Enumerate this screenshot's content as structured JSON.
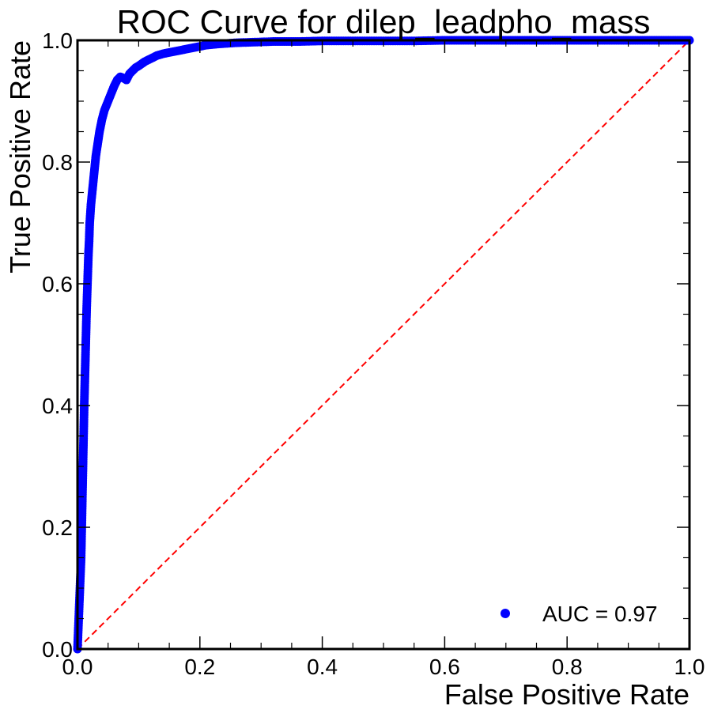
{
  "chart_data": {
    "type": "scatter",
    "title": "ROC Curve for dilep_leadpho_mass",
    "xlabel": "False Positive Rate",
    "ylabel": "True Positive Rate",
    "xlim": [
      0.0,
      1.0
    ],
    "ylim": [
      0.0,
      1.0
    ],
    "x_ticks": [
      "0.0",
      "0.2",
      "0.4",
      "0.6",
      "0.8",
      "1.0"
    ],
    "y_ticks": [
      "0.0",
      "0.2",
      "0.4",
      "0.6",
      "0.8",
      "1.0"
    ],
    "grid": false,
    "legend_position": "bottom-right",
    "series": [
      {
        "name": "AUC = 0.97",
        "color": "#0000ff",
        "marker": "circle",
        "x": [
          0.0,
          0.002,
          0.004,
          0.006,
          0.008,
          0.01,
          0.011,
          0.012,
          0.013,
          0.014,
          0.015,
          0.016,
          0.017,
          0.018,
          0.019,
          0.02,
          0.022,
          0.024,
          0.026,
          0.028,
          0.03,
          0.033,
          0.036,
          0.04,
          0.044,
          0.048,
          0.052,
          0.056,
          0.06,
          0.065,
          0.07,
          0.075,
          0.08,
          0.085,
          0.09,
          0.095,
          0.1,
          0.11,
          0.12,
          0.13,
          0.14,
          0.15,
          0.17,
          0.19,
          0.21,
          0.23,
          0.26,
          0.29,
          0.32,
          0.36,
          0.4,
          0.45,
          0.5,
          0.55,
          0.6,
          0.65,
          0.7,
          0.75,
          0.8,
          0.85,
          0.9,
          0.95,
          1.0
        ],
        "y": [
          0.0,
          0.05,
          0.1,
          0.15,
          0.25,
          0.35,
          0.4,
          0.44,
          0.48,
          0.52,
          0.56,
          0.59,
          0.62,
          0.65,
          0.67,
          0.7,
          0.73,
          0.75,
          0.77,
          0.79,
          0.81,
          0.83,
          0.85,
          0.87,
          0.885,
          0.895,
          0.905,
          0.915,
          0.925,
          0.935,
          0.94,
          0.938,
          0.935,
          0.945,
          0.95,
          0.955,
          0.958,
          0.965,
          0.97,
          0.975,
          0.978,
          0.98,
          0.984,
          0.988,
          0.992,
          0.994,
          0.996,
          0.997,
          0.998,
          0.998,
          0.999,
          0.999,
          0.999,
          0.999,
          1.0,
          1.0,
          1.0,
          1.0,
          1.0,
          1.0,
          1.0,
          1.0,
          1.0
        ]
      },
      {
        "name": "",
        "color": "#ff0000",
        "line_style": "dashed",
        "x": [
          0.0,
          1.0
        ],
        "y": [
          0.0,
          1.0
        ]
      }
    ],
    "legend": [
      "AUC = 0.97"
    ]
  }
}
